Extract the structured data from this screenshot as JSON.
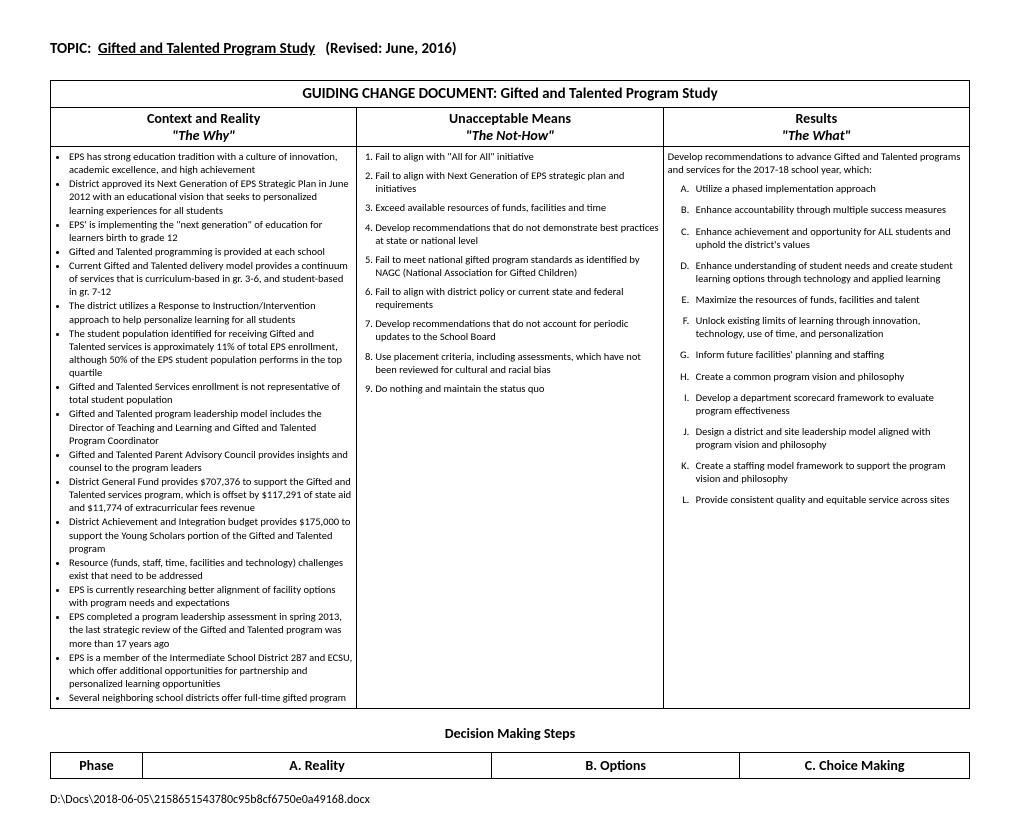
{
  "topic": {
    "label": "TOPIC",
    "title": "Gifted and Talented Program Study",
    "revised": "(Revised:  June, 2016)"
  },
  "doc_title": "GUIDING CHANGE DOCUMENT:  Gifted and Talented Program Study",
  "columns": {
    "context": {
      "head": "Context and Reality",
      "sub": "\"The Why\""
    },
    "means": {
      "head": "Unacceptable Means",
      "sub": "\"The Not-How\""
    },
    "results": {
      "head": "Results",
      "sub": "\"The What\""
    }
  },
  "context_items": [
    "EPS has strong education tradition with a culture of innovation, academic excellence, and high achievement",
    "District approved its Next Generation of EPS Strategic Plan in June 2012 with an educational vision that seeks to personalized learning experiences for all students",
    "EPS' is implementing the \"next generation\" of education for learners birth to grade 12",
    "Gifted and Talented programming is provided at each school",
    "Current Gifted and Talented delivery model provides a continuum of services that is curriculum-based in gr. 3-6, and student-based in gr. 7-12",
    "The district utilizes a Response to Instruction/Intervention approach to help personalize learning for all students",
    "The student population identified for receiving Gifted and Talented services is approximately 11% of total EPS enrollment, although 50% of the EPS student population performs in the top quartile",
    "Gifted and Talented Services enrollment is not representative of total student population",
    "Gifted and Talented program leadership model includes the Director of Teaching and Learning and Gifted and Talented Program Coordinator",
    "Gifted and Talented Parent Advisory Council provides insights and counsel to the program leaders",
    "District General Fund provides $707,376 to support the Gifted and Talented services program, which is offset by $117,291 of state aid and $11,774 of extracurricular fees revenue",
    "District Achievement and Integration budget provides $175,000 to support the Young Scholars portion of the Gifted and Talented program",
    "Resource (funds, staff, time, facilities and technology) challenges exist that need to be addressed",
    "EPS is currently researching better alignment of facility options with program needs and expectations",
    "EPS completed a program leadership assessment in spring 2013, the last strategic review of the Gifted and Talented program was more than 17 years ago",
    "EPS is a member of the Intermediate School District 287 and ECSU, which offer additional opportunities for partnership and personalized learning opportunities",
    "Several neighboring school districts offer full-time gifted program"
  ],
  "means_items": [
    "Fail to align with \"All for All\" initiative",
    "Fail to align with Next Generation of EPS strategic plan and initiatives",
    "Exceed available resources of funds, facilities and time",
    "Develop recommendations that do not demonstrate best practices at state or national level",
    "Fail to meet national gifted program standards as identified by NAGC (National Association for Gifted Children)",
    "Fail to align with district policy or current state and federal requirements",
    "Develop recommendations that do not account for periodic updates to the School Board",
    "Use placement criteria, including assessments, which have not been reviewed for cultural and racial bias",
    "Do nothing and maintain the status quo"
  ],
  "results_intro": "Develop recommendations to advance Gifted and Talented programs and services for the 2017-18 school year, which:",
  "results_items": [
    "Utilize a phased implementation approach",
    "Enhance accountability through multiple success measures",
    "Enhance achievement and opportunity for ALL students and uphold the district's values",
    "Enhance understanding of student needs and create student learning options through technology and applied learning",
    "Maximize the resources of funds, facilities and talent",
    "Unlock existing limits of learning through innovation, technology, use of time, and personalization",
    "Inform future facilities' planning and staffing",
    "Create a common program vision and philosophy",
    "Develop a department scorecard framework to evaluate program effectiveness",
    "Design a district and site leadership model aligned with program vision and philosophy",
    "Create a staffing model framework to support the program vision and philosophy",
    "Provide consistent quality and equitable service across sites"
  ],
  "decision_title": "Decision Making Steps",
  "phase_headers": {
    "phase": "Phase",
    "reality": "A.  Reality",
    "options": "B.  Options",
    "choice": "C.  Choice Making"
  },
  "footer_path": "D:\\Docs\\2018-06-05\\2158651543780c95b8cf6750e0a49168.docx"
}
